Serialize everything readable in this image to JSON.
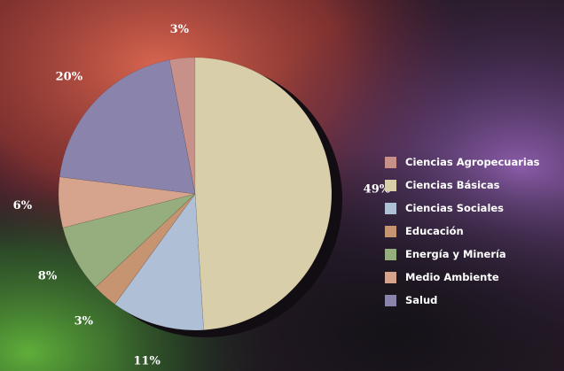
{
  "chart_data": {
    "type": "pie",
    "categories": [
      "Ciencias Agropecuarias",
      "Ciencias Básicas",
      "Ciencias Sociales",
      "Educación",
      "Energía y Minería",
      "Medio Ambiente",
      "Salud"
    ],
    "values": [
      3,
      49,
      11,
      3,
      8,
      6,
      20
    ],
    "labels": [
      "3%",
      "49%",
      "11%",
      "3%",
      "8%",
      "6%",
      "20%"
    ],
    "colors": [
      "#c7918a",
      "#d9ceaa",
      "#aebfd6",
      "#c79472",
      "#96ad7e",
      "#d6a48c",
      "#8a84ad"
    ],
    "title": "",
    "legend_position": "right"
  }
}
